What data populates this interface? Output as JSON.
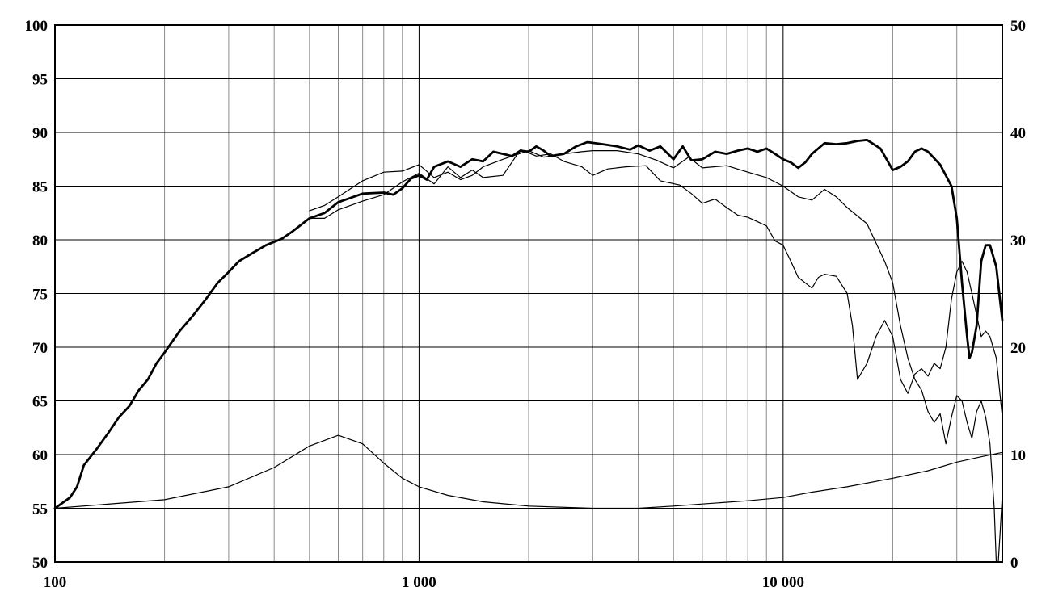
{
  "chart_data": {
    "type": "line",
    "title": "",
    "xlabel": "",
    "ylabel": "",
    "x_scale": "log",
    "xlim": [
      100,
      40000
    ],
    "ylim": [
      50,
      100
    ],
    "y2lim": [
      0,
      50
    ],
    "grid": true,
    "x_tick_labels": [
      {
        "value": 100,
        "label": "100"
      },
      {
        "value": 1000,
        "label": "1 000"
      },
      {
        "value": 10000,
        "label": "10 000"
      }
    ],
    "y_tick_labels": [
      "50",
      "55",
      "60",
      "65",
      "70",
      "75",
      "80",
      "85",
      "90",
      "95",
      "100"
    ],
    "y2_tick_labels": [
      "0",
      "10",
      "20",
      "30",
      "40",
      "50"
    ],
    "series": [
      {
        "axis": "left",
        "weight": "bold",
        "points": [
          [
            100,
            55
          ],
          [
            110,
            56
          ],
          [
            115,
            57
          ],
          [
            120,
            59
          ],
          [
            130,
            60.5
          ],
          [
            140,
            62
          ],
          [
            150,
            63.5
          ],
          [
            160,
            64.5
          ],
          [
            170,
            66
          ],
          [
            180,
            67
          ],
          [
            190,
            68.5
          ],
          [
            200,
            69.5
          ],
          [
            220,
            71.5
          ],
          [
            240,
            73
          ],
          [
            260,
            74.5
          ],
          [
            280,
            76
          ],
          [
            300,
            77
          ],
          [
            320,
            78
          ],
          [
            350,
            78.8
          ],
          [
            380,
            79.5
          ],
          [
            420,
            80.1
          ],
          [
            450,
            80.8
          ],
          [
            500,
            82
          ],
          [
            550,
            82.5
          ],
          [
            600,
            83.5
          ],
          [
            700,
            84.3
          ],
          [
            800,
            84.4
          ],
          [
            850,
            84.2
          ],
          [
            900,
            84.8
          ],
          [
            950,
            85.7
          ],
          [
            1000,
            86
          ],
          [
            1050,
            85.6
          ],
          [
            1100,
            86.8
          ],
          [
            1200,
            87.3
          ],
          [
            1300,
            86.8
          ],
          [
            1400,
            87.5
          ],
          [
            1500,
            87.3
          ],
          [
            1600,
            88.2
          ],
          [
            1700,
            88
          ],
          [
            1800,
            87.8
          ],
          [
            1900,
            88.3
          ],
          [
            2000,
            88.2
          ],
          [
            2100,
            88.7
          ],
          [
            2200,
            88.3
          ],
          [
            2300,
            87.8
          ],
          [
            2500,
            88
          ],
          [
            2700,
            88.7
          ],
          [
            2900,
            89.1
          ],
          [
            3200,
            88.9
          ],
          [
            3500,
            88.7
          ],
          [
            3800,
            88.4
          ],
          [
            4000,
            88.8
          ],
          [
            4300,
            88.3
          ],
          [
            4600,
            88.7
          ],
          [
            5000,
            87.5
          ],
          [
            5300,
            88.7
          ],
          [
            5600,
            87.4
          ],
          [
            6000,
            87.5
          ],
          [
            6500,
            88.2
          ],
          [
            7000,
            88
          ],
          [
            7500,
            88.3
          ],
          [
            8000,
            88.5
          ],
          [
            8500,
            88.2
          ],
          [
            9000,
            88.5
          ],
          [
            9500,
            88
          ],
          [
            10000,
            87.5
          ],
          [
            10500,
            87.2
          ],
          [
            11000,
            86.7
          ],
          [
            11500,
            87.2
          ],
          [
            12000,
            88
          ],
          [
            13000,
            89
          ],
          [
            14000,
            88.9
          ],
          [
            15000,
            89
          ],
          [
            16000,
            89.2
          ],
          [
            17000,
            89.3
          ],
          [
            18500,
            88.5
          ],
          [
            20000,
            86.5
          ],
          [
            21000,
            86.8
          ],
          [
            22000,
            87.3
          ],
          [
            23000,
            88.2
          ],
          [
            24000,
            88.5
          ],
          [
            25000,
            88.2
          ],
          [
            27000,
            87
          ],
          [
            29000,
            85
          ],
          [
            30000,
            82
          ],
          [
            31000,
            76
          ],
          [
            32000,
            71
          ],
          [
            32500,
            69
          ],
          [
            33000,
            69.5
          ],
          [
            34000,
            72
          ],
          [
            35000,
            78
          ],
          [
            36000,
            79.5
          ],
          [
            37000,
            79.5
          ],
          [
            38500,
            77.5
          ],
          [
            40000,
            72.5
          ]
        ]
      },
      {
        "axis": "left",
        "weight": "thin",
        "points": [
          [
            500,
            82.7
          ],
          [
            550,
            83.2
          ],
          [
            600,
            84
          ],
          [
            700,
            85.5
          ],
          [
            800,
            86.3
          ],
          [
            900,
            86.4
          ],
          [
            1000,
            87
          ],
          [
            1100,
            85.8
          ],
          [
            1200,
            86.3
          ],
          [
            1300,
            85.6
          ],
          [
            1400,
            86
          ],
          [
            1500,
            86.8
          ],
          [
            1700,
            87.5
          ],
          [
            2000,
            88.3
          ],
          [
            2200,
            87.7
          ],
          [
            2500,
            88
          ],
          [
            2800,
            88.2
          ],
          [
            3000,
            88.3
          ],
          [
            3500,
            88.3
          ],
          [
            4000,
            88
          ],
          [
            4500,
            87.4
          ],
          [
            5000,
            86.7
          ],
          [
            5500,
            87.7
          ],
          [
            6000,
            86.7
          ],
          [
            7000,
            86.9
          ],
          [
            8000,
            86.3
          ],
          [
            9000,
            85.8
          ],
          [
            10000,
            85
          ],
          [
            11000,
            84
          ],
          [
            12000,
            83.7
          ],
          [
            13000,
            84.7
          ],
          [
            14000,
            84
          ],
          [
            15000,
            83
          ],
          [
            17000,
            81.5
          ],
          [
            19000,
            78
          ],
          [
            20000,
            76
          ],
          [
            21000,
            72
          ],
          [
            22000,
            69
          ],
          [
            23000,
            67
          ],
          [
            24000,
            66
          ],
          [
            25000,
            64
          ],
          [
            26000,
            63
          ],
          [
            27000,
            63.8
          ],
          [
            28000,
            61
          ],
          [
            29000,
            63.5
          ],
          [
            30000,
            65.5
          ],
          [
            31000,
            65
          ],
          [
            32000,
            63
          ],
          [
            33000,
            61.5
          ],
          [
            34000,
            64
          ],
          [
            35000,
            65
          ],
          [
            36000,
            63.5
          ],
          [
            37000,
            61
          ],
          [
            38000,
            55
          ],
          [
            38500,
            50
          ],
          [
            39000,
            50
          ],
          [
            39500,
            53
          ],
          [
            40000,
            56.3
          ]
        ]
      },
      {
        "axis": "left",
        "weight": "thin",
        "points": [
          [
            500,
            82
          ],
          [
            550,
            82
          ],
          [
            600,
            82.8
          ],
          [
            700,
            83.6
          ],
          [
            800,
            84.2
          ],
          [
            900,
            85.4
          ],
          [
            1000,
            86.2
          ],
          [
            1100,
            85.2
          ],
          [
            1200,
            86.8
          ],
          [
            1300,
            85.8
          ],
          [
            1400,
            86.5
          ],
          [
            1500,
            85.8
          ],
          [
            1700,
            86
          ],
          [
            1900,
            88.4
          ],
          [
            2100,
            87.8
          ],
          [
            2300,
            88
          ],
          [
            2500,
            87.3
          ],
          [
            2800,
            86.8
          ],
          [
            3000,
            86
          ],
          [
            3300,
            86.6
          ],
          [
            3700,
            86.8
          ],
          [
            4200,
            86.9
          ],
          [
            4600,
            85.5
          ],
          [
            5200,
            85.1
          ],
          [
            5600,
            84.3
          ],
          [
            6000,
            83.4
          ],
          [
            6500,
            83.8
          ],
          [
            7000,
            83
          ],
          [
            7500,
            82.3
          ],
          [
            8000,
            82.1
          ],
          [
            9000,
            81.3
          ],
          [
            9500,
            79.9
          ],
          [
            10000,
            79.5
          ],
          [
            10500,
            78
          ],
          [
            11000,
            76.5
          ],
          [
            12000,
            75.5
          ],
          [
            12500,
            76.5
          ],
          [
            13000,
            76.8
          ],
          [
            14000,
            76.6
          ],
          [
            15000,
            75
          ],
          [
            15500,
            72
          ],
          [
            16000,
            67
          ],
          [
            17000,
            68.5
          ],
          [
            18000,
            71
          ],
          [
            19000,
            72.5
          ],
          [
            20000,
            71
          ],
          [
            21000,
            67
          ],
          [
            22000,
            65.7
          ],
          [
            23000,
            67.5
          ],
          [
            24000,
            68
          ],
          [
            25000,
            67.3
          ],
          [
            26000,
            68.5
          ],
          [
            27000,
            68
          ],
          [
            28000,
            70
          ],
          [
            29000,
            74.5
          ],
          [
            30000,
            77
          ],
          [
            31000,
            78
          ],
          [
            32000,
            77
          ],
          [
            33000,
            75
          ],
          [
            34000,
            73
          ],
          [
            35000,
            71
          ],
          [
            36000,
            71.5
          ],
          [
            37000,
            71
          ],
          [
            38500,
            69
          ],
          [
            40000,
            63.5
          ]
        ]
      },
      {
        "axis": "right",
        "weight": "thin",
        "points": [
          [
            100,
            5
          ],
          [
            200,
            5.8
          ],
          [
            300,
            7
          ],
          [
            400,
            8.8
          ],
          [
            500,
            10.8
          ],
          [
            600,
            11.8
          ],
          [
            700,
            11
          ],
          [
            800,
            9.2
          ],
          [
            900,
            7.8
          ],
          [
            1000,
            7
          ],
          [
            1200,
            6.2
          ],
          [
            1500,
            5.6
          ],
          [
            2000,
            5.2
          ],
          [
            3000,
            5
          ],
          [
            4000,
            5
          ],
          [
            5000,
            5.2
          ],
          [
            6000,
            5.4
          ],
          [
            8000,
            5.7
          ],
          [
            10000,
            6
          ],
          [
            12000,
            6.5
          ],
          [
            15000,
            7
          ],
          [
            20000,
            7.8
          ],
          [
            25000,
            8.5
          ],
          [
            30000,
            9.3
          ],
          [
            35000,
            9.8
          ],
          [
            40000,
            10.2
          ]
        ]
      }
    ]
  }
}
